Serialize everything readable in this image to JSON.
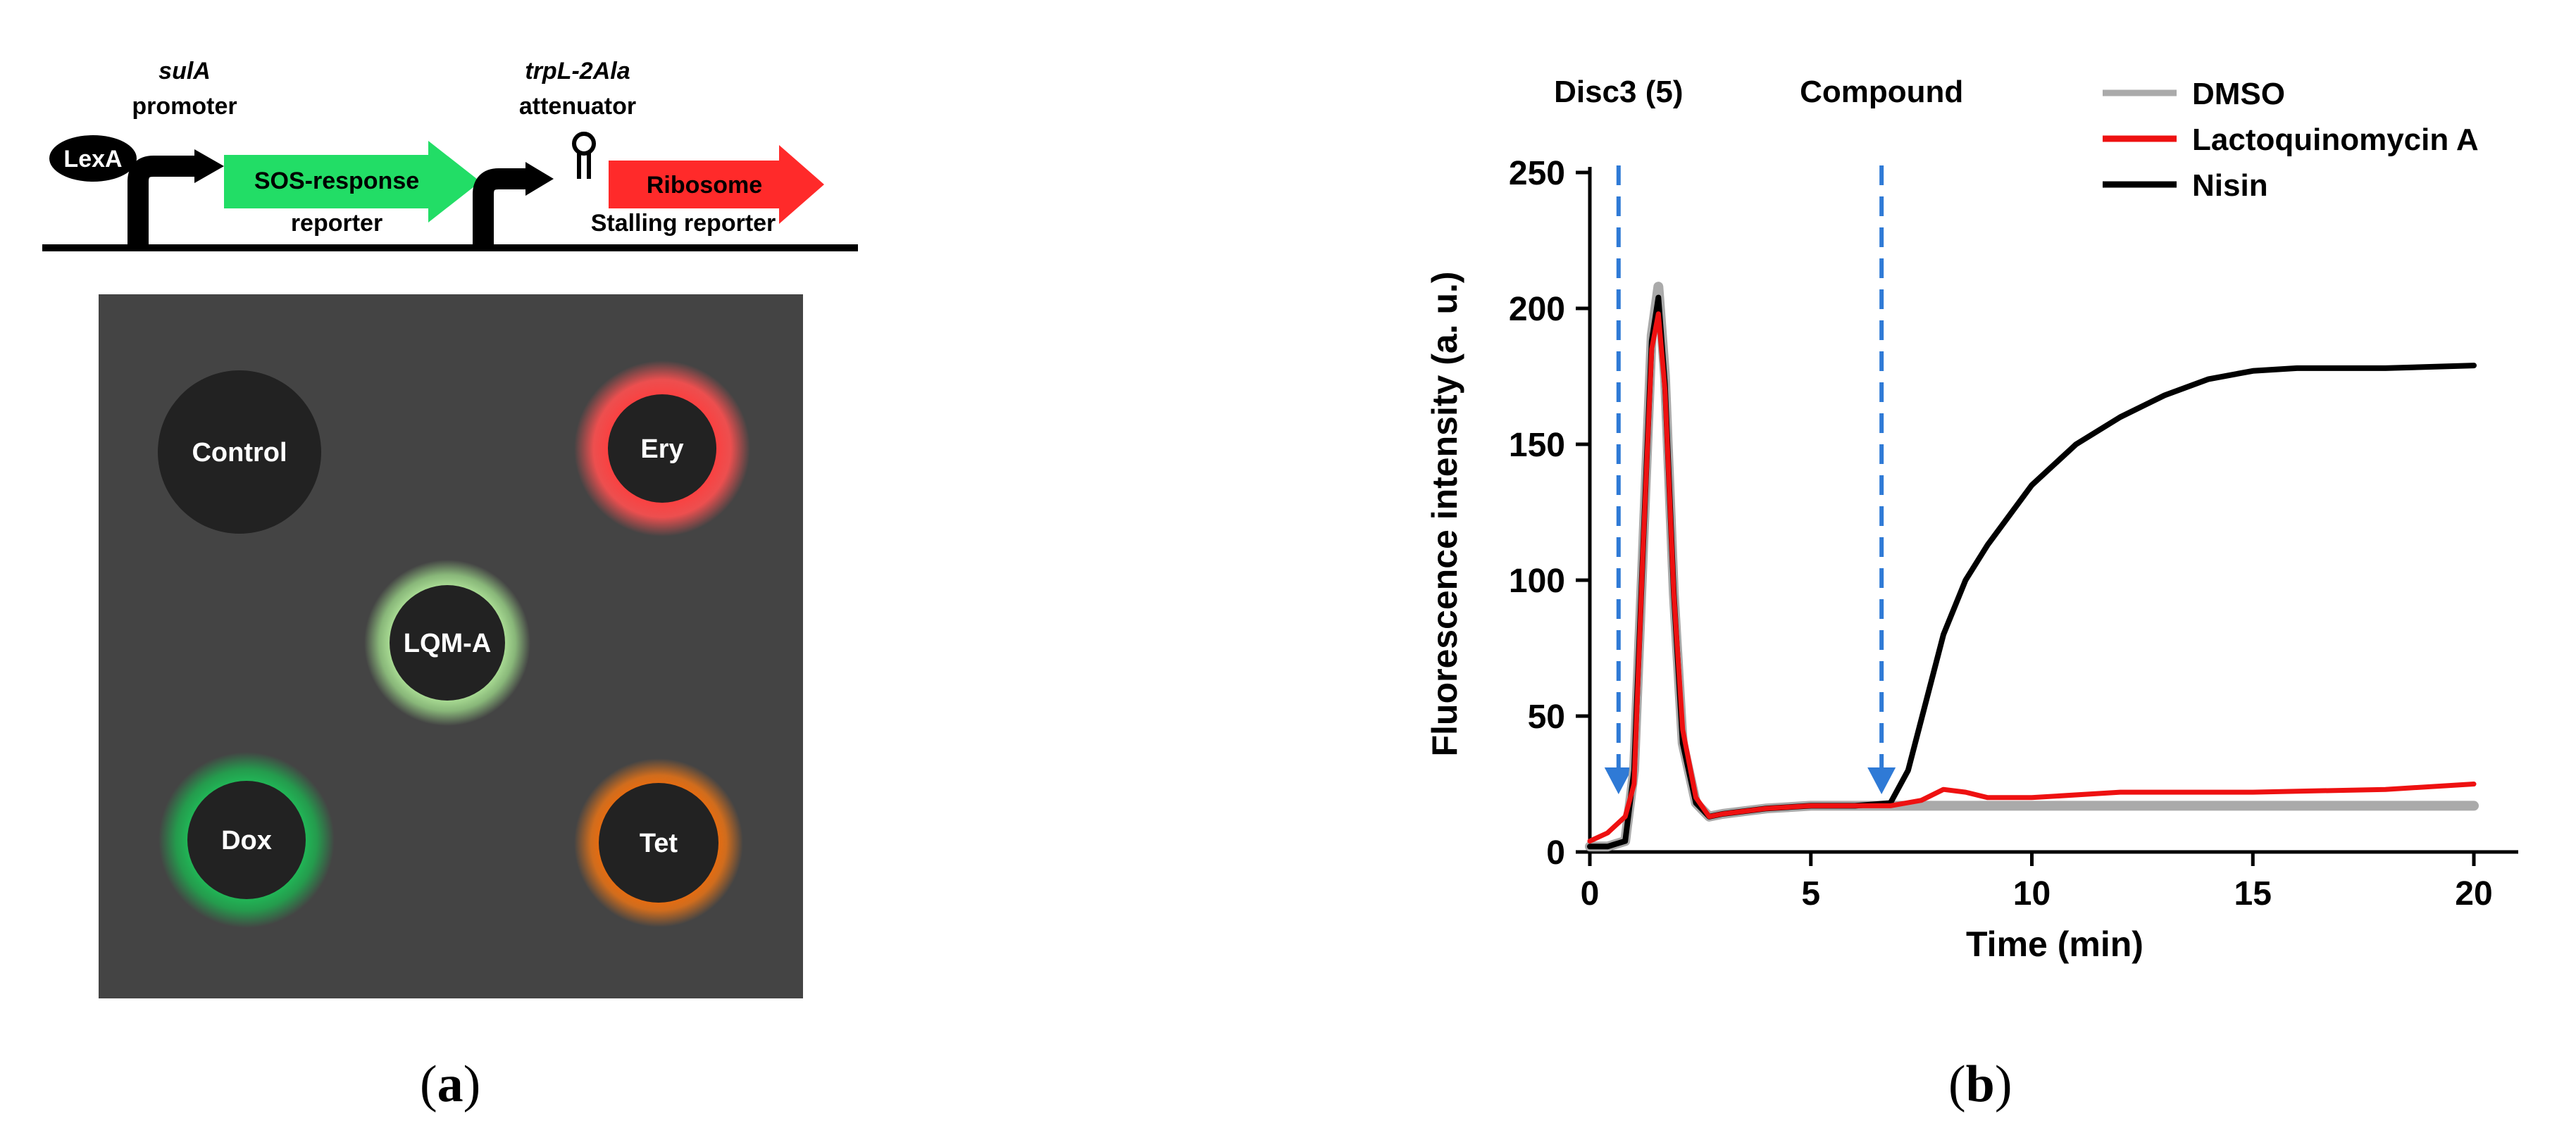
{
  "panel_a": {
    "construct": {
      "lexa_label": "LexA",
      "promoter_gene": "sulA",
      "promoter_label": "promoter",
      "sos_label": "SOS-response",
      "sos_sub": "reporter",
      "attenuator_gene": "trpL-2Ala",
      "attenuator_label": "attenuator",
      "ribosome_label": "Ribosome",
      "ribosome_sub": "Stalling reporter",
      "colors": {
        "sos": "#22dd66",
        "ribosome": "#ff2a2a",
        "lexa": "#000000",
        "line": "#000000"
      }
    },
    "plate": {
      "background": "#444444",
      "discs": [
        {
          "label": "Control",
          "glow": "none"
        },
        {
          "label": "Ery",
          "glow": "#ff4444"
        },
        {
          "label": "LQM-A",
          "glow": "#b6f2a0"
        },
        {
          "label": "Dox",
          "glow": "#1ec85a"
        },
        {
          "label": "Tet",
          "glow": "#ff6a00"
        }
      ]
    },
    "caption_letter": "a"
  },
  "panel_b": {
    "caption_letter": "b",
    "chart_data": {
      "type": "line",
      "title": "",
      "xlabel": "Time (min)",
      "ylabel": "Fluorescence intensity (a. u.)",
      "xlim": [
        0,
        20
      ],
      "ylim": [
        0,
        250
      ],
      "xticks": [
        0,
        5,
        10,
        15,
        20
      ],
      "yticks": [
        0,
        50,
        100,
        150,
        200,
        250
      ],
      "grid": false,
      "legend_position": "top-right",
      "annotations": [
        {
          "text": "Disc3 (5)",
          "x": 0.65
        },
        {
          "text": "Compound",
          "x": 6.6
        }
      ],
      "series": [
        {
          "name": "DMSO",
          "color": "#aaaaaa",
          "x": [
            0,
            0.4,
            0.8,
            1.0,
            1.2,
            1.4,
            1.55,
            1.7,
            1.9,
            2.1,
            2.4,
            2.7,
            3.0,
            3.5,
            4.0,
            5.0,
            6.0,
            6.8,
            8.0,
            10.0,
            15.0,
            20.0
          ],
          "y": [
            2,
            2,
            4,
            30,
            110,
            190,
            208,
            175,
            95,
            40,
            18,
            13,
            14,
            15,
            16,
            17,
            17,
            17,
            17,
            17,
            17,
            17
          ]
        },
        {
          "name": "Lactoquinomycin A",
          "color": "#ee1111",
          "x": [
            0,
            0.4,
            0.8,
            1.0,
            1.2,
            1.4,
            1.55,
            1.7,
            1.9,
            2.1,
            2.4,
            2.7,
            3.0,
            3.5,
            4.0,
            5.0,
            6.0,
            6.8,
            7.5,
            8.0,
            8.5,
            9.0,
            10.0,
            12.0,
            15.0,
            18.0,
            20.0
          ],
          "y": [
            4,
            7,
            13,
            25,
            110,
            185,
            198,
            170,
            95,
            45,
            20,
            13,
            14,
            15,
            16,
            17,
            17,
            17,
            19,
            23,
            22,
            20,
            20,
            22,
            22,
            23,
            25
          ]
        },
        {
          "name": "Nisin",
          "color": "#000000",
          "x": [
            0,
            0.4,
            0.8,
            1.0,
            1.2,
            1.4,
            1.55,
            1.7,
            1.9,
            2.1,
            2.4,
            2.7,
            3.0,
            3.5,
            4.0,
            5.0,
            6.0,
            6.8,
            7.2,
            7.6,
            8.0,
            8.5,
            9.0,
            10.0,
            11.0,
            12.0,
            13.0,
            14.0,
            15.0,
            16.0,
            18.0,
            20.0
          ],
          "y": [
            2,
            2,
            4,
            30,
            110,
            188,
            204,
            172,
            95,
            40,
            18,
            13,
            14,
            15,
            16,
            17,
            17,
            18,
            30,
            55,
            80,
            100,
            113,
            135,
            150,
            160,
            168,
            174,
            177,
            178,
            178,
            179
          ]
        }
      ]
    }
  }
}
